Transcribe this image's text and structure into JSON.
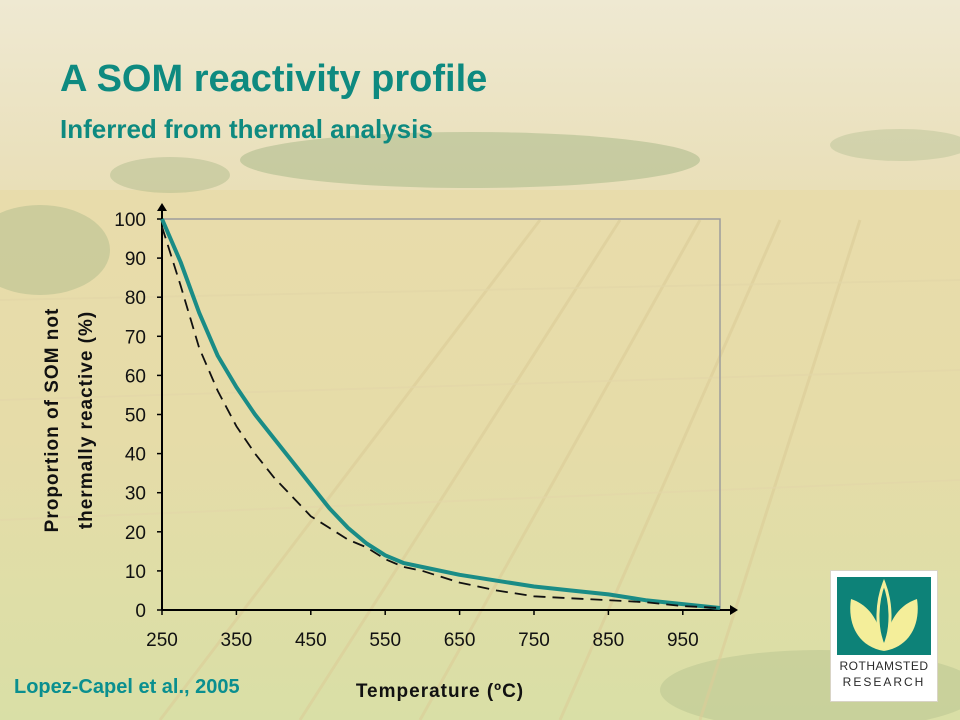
{
  "slide": {
    "title": "A SOM reactivity profile",
    "subtitle": "Inferred from thermal analysis",
    "citation": "Lopez-Capel et al., 2005"
  },
  "logo": {
    "line1": "ROTHAMSTED",
    "line2": "RESEARCH",
    "icon": "rothamsted-leaf-logo-icon"
  },
  "colors": {
    "title": "#0e8a80",
    "solid_series": "#1a8c86",
    "dashed_series": "#111111",
    "logo_teal": "#0d8278",
    "logo_leaf": "#f4ee9a"
  },
  "chart_data": {
    "type": "line",
    "xlabel": "Temperature (ºC)",
    "ylabel_line1": "Proportion of SOM not",
    "ylabel_line2": "thermally reactive (%)",
    "xlim": [
      250,
      1000
    ],
    "ylim": [
      0,
      100
    ],
    "x_ticks": [
      250,
      350,
      450,
      550,
      650,
      750,
      850,
      950
    ],
    "y_ticks": [
      0,
      10,
      20,
      30,
      40,
      50,
      60,
      70,
      80,
      90,
      100
    ],
    "grid": false,
    "series": [
      {
        "style": "solid",
        "x": [
          250,
          275,
          300,
          325,
          350,
          375,
          400,
          425,
          450,
          475,
          500,
          525,
          550,
          575,
          600,
          650,
          700,
          750,
          800,
          850,
          900,
          950,
          1000
        ],
        "y": [
          100,
          89,
          76,
          65,
          57,
          50,
          44,
          38,
          32,
          26,
          21,
          17,
          14,
          12,
          11,
          9,
          7.5,
          6,
          5,
          4,
          2.5,
          1.5,
          0.5
        ]
      },
      {
        "style": "dashed",
        "x": [
          250,
          275,
          300,
          325,
          350,
          375,
          400,
          425,
          450,
          475,
          500,
          525,
          550,
          575,
          600,
          650,
          700,
          750,
          800,
          850,
          900,
          950,
          1000
        ],
        "y": [
          98,
          83,
          67,
          56,
          47,
          40,
          34,
          29,
          24,
          21,
          18,
          16,
          13,
          11,
          10,
          7,
          5,
          3.5,
          3,
          2.5,
          2,
          1,
          0.5
        ]
      }
    ]
  }
}
